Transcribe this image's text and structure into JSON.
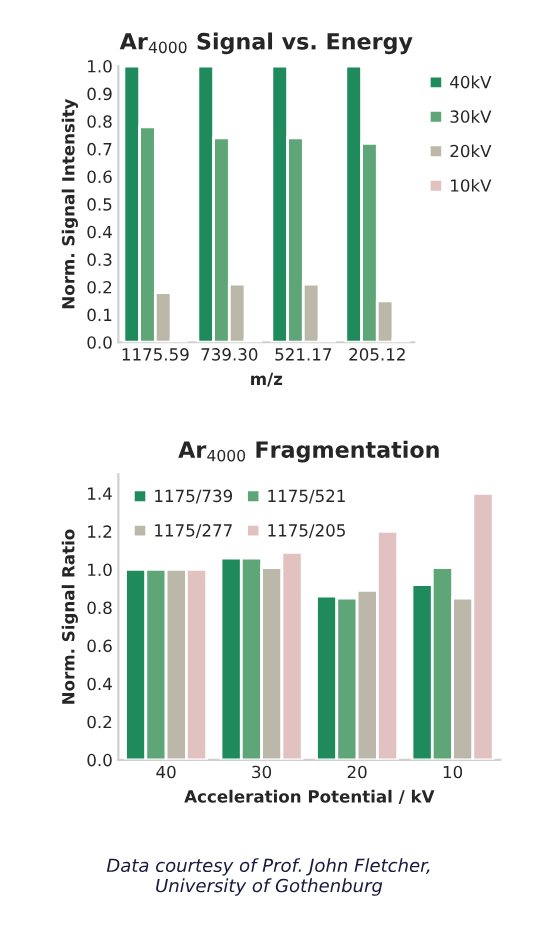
{
  "chart_data": [
    {
      "type": "bar",
      "title": "Ar$_{4000}$ Signal vs. Energy",
      "xlabel": "m/z",
      "ylabel": "Norm. Signal Intensity",
      "categories": [
        "1175.59",
        "739.30",
        "521.17",
        "205.12"
      ],
      "series": [
        {
          "name": "40kV",
          "color": "#1f8a5c",
          "values": [
            1.0,
            1.0,
            1.0,
            1.0
          ]
        },
        {
          "name": "30kV",
          "color": "#5ea677",
          "values": [
            0.78,
            0.74,
            0.74,
            0.72
          ]
        },
        {
          "name": "20kV",
          "color": "#bcb8a9",
          "values": [
            0.18,
            0.21,
            0.21,
            0.15
          ]
        },
        {
          "name": "10kV",
          "color": "#e2c2c0",
          "values": [
            0.01,
            0.01,
            0.01,
            0.01
          ]
        }
      ],
      "ylim": [
        0,
        1.0
      ],
      "yticks": [
        {
          "value": 0.0,
          "label": "0.0"
        },
        0.1,
        0.2,
        0.3,
        0.4,
        0.5,
        0.6,
        0.7,
        0.8,
        0.9,
        {
          "value": 1.0,
          "label": "1.0"
        }
      ],
      "grid": false,
      "legend": "right"
    },
    {
      "type": "bar",
      "title": "Ar$_{4000}$ Fragmentation",
      "xlabel": "Acceleration Potential / kV",
      "ylabel": "Norm. Signal Ratio",
      "categories": [
        "40",
        "30",
        "20",
        "10"
      ],
      "series": [
        {
          "name": "1175/739",
          "color": "#1f8a5c",
          "values": [
            1.0,
            1.06,
            0.86,
            0.92
          ]
        },
        {
          "name": "1175/521",
          "color": "#5ea677",
          "values": [
            1.0,
            1.06,
            0.85,
            1.01
          ]
        },
        {
          "name": "1175/277",
          "color": "#bcb8a9",
          "values": [
            1.0,
            1.01,
            0.89,
            0.85
          ]
        },
        {
          "name": "1175/205",
          "color": "#e2c2c0",
          "values": [
            1.0,
            1.09,
            1.2,
            1.4
          ]
        }
      ],
      "ylim": [
        0,
        1.5
      ],
      "yticks": [
        {
          "value": 0.0,
          "label": "0.0"
        },
        {
          "value": 0.2,
          "label": "0.2"
        },
        {
          "value": 0.4,
          "label": "0.4"
        },
        {
          "value": 0.6,
          "label": "0.6"
        },
        {
          "value": 0.8,
          "label": "0.8"
        },
        {
          "value": 1.0,
          "label": "1.0"
        },
        {
          "value": 1.2,
          "label": "1.2"
        },
        {
          "value": 1.4,
          "label": "1.4"
        }
      ],
      "grid": false,
      "legend": "top",
      "annotations": [
        "Data courtesy of Prof. John Fletcher,\nUniversity of Gothenburg"
      ]
    }
  ]
}
